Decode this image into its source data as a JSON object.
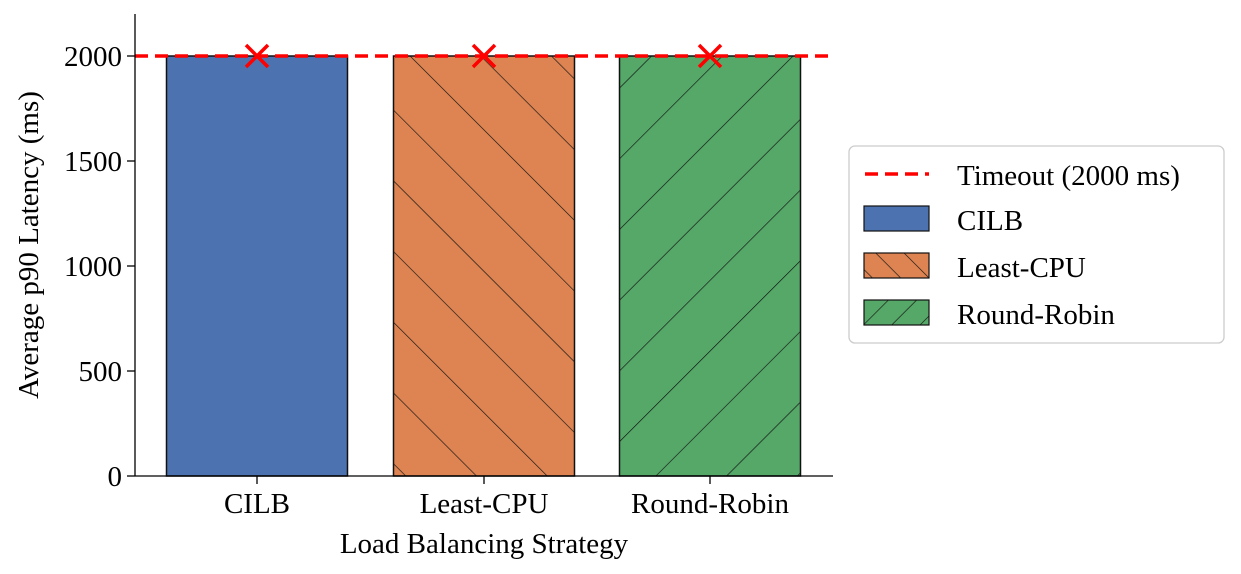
{
  "chart_data": {
    "type": "bar",
    "title": "",
    "xlabel": "Load Balancing Strategy",
    "ylabel": "Average p90 Latency (ms)",
    "categories": [
      "CILB",
      "Least-CPU",
      "Round-Robin"
    ],
    "values": [
      2000,
      2000,
      2000
    ],
    "ylim": [
      0,
      2200
    ],
    "yticks": [
      0,
      500,
      1000,
      1500,
      2000
    ],
    "ytick_labels": [
      "0",
      "500",
      "1000",
      "1500",
      "2000"
    ],
    "colors": [
      "#4c72b0",
      "#dd8452",
      "#55a868"
    ],
    "hatches": [
      "none",
      "forward-diagonal",
      "back-diagonal"
    ],
    "timeout_line": {
      "value": 2000,
      "label": "Timeout (2000 ms)",
      "color": "#ff0000",
      "style": "dashed"
    },
    "timeout_markers": {
      "symbol": "x",
      "color": "#ff0000"
    },
    "legend": {
      "position": "center-right",
      "entries": [
        {
          "label": "Timeout (2000 ms)",
          "kind": "line"
        },
        {
          "label": "CILB",
          "kind": "patch"
        },
        {
          "label": "Least-CPU",
          "kind": "patch"
        },
        {
          "label": "Round-Robin",
          "kind": "patch"
        }
      ]
    },
    "grid": false
  }
}
